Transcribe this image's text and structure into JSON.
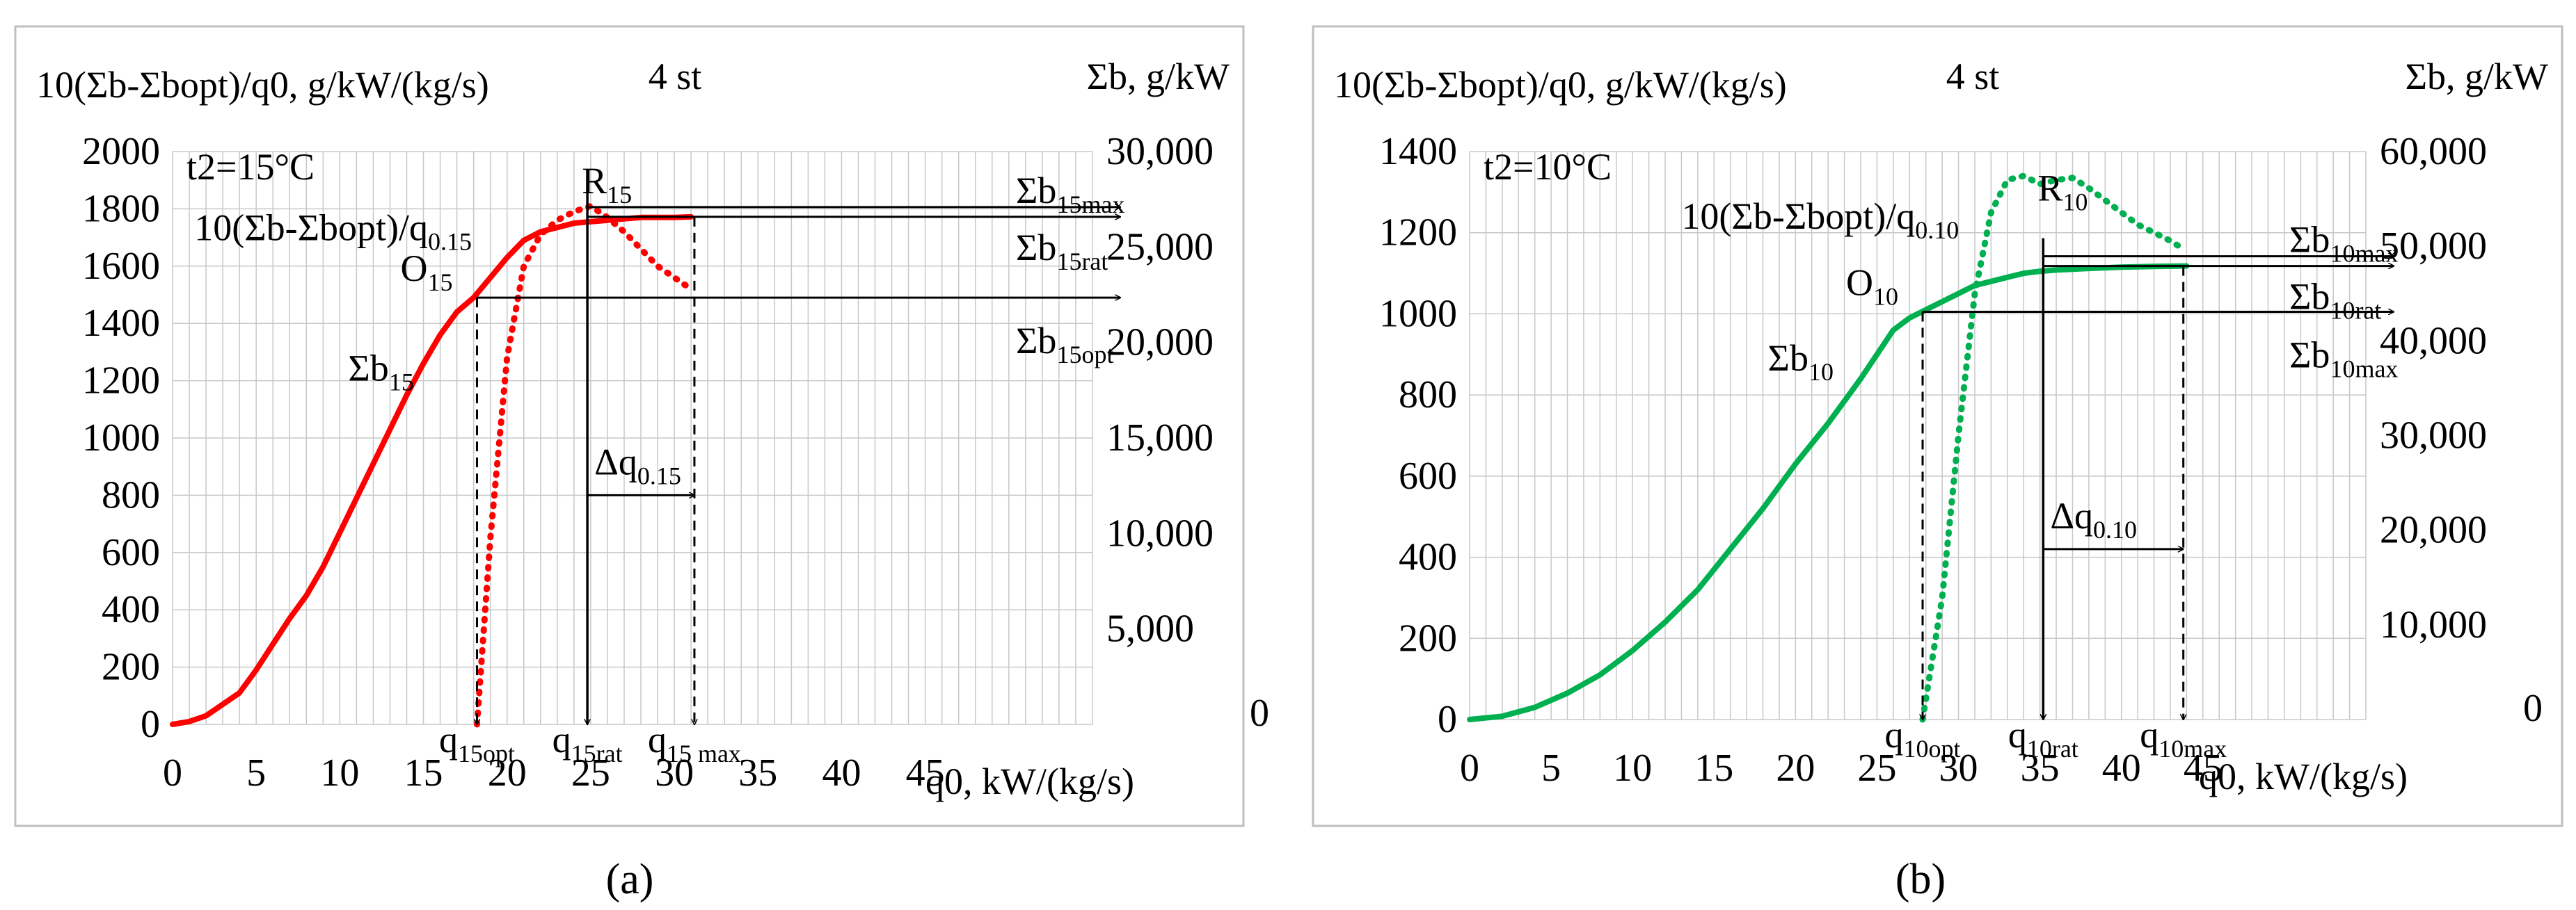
{
  "figure": {
    "caption_a": "(a)",
    "caption_b": "(b)"
  },
  "chart_data": [
    {
      "type": "line",
      "id": "a",
      "title": "4 st",
      "ylabel_left": "10(Σb-Σbopt)/q0, g/kW/(kg/s)",
      "ylabel_right": "Σb, g/kW",
      "xlabel": "q0, kW/(kg/s)",
      "xlim": [
        0,
        55
      ],
      "ylim_left": [
        0,
        2000
      ],
      "ylim_right": [
        0,
        30000
      ],
      "x_ticks": [
        0,
        5,
        10,
        15,
        20,
        25,
        30,
        35,
        40,
        45
      ],
      "y_ticks_left": [
        0,
        200,
        400,
        600,
        800,
        1000,
        1200,
        1400,
        1600,
        1800,
        2000
      ],
      "y_ticks_right": [
        "5,000",
        "10,000",
        "15,000",
        "20,000",
        "25,000",
        "30,000"
      ],
      "y_zero_right": "0",
      "grid": true,
      "condition": "t2=15°C",
      "series": [
        {
          "name": "Σb15",
          "axis": "left",
          "style": "solid",
          "color": "#ff0000",
          "x": [
            0,
            1,
            2,
            3,
            4,
            5,
            6,
            7,
            8,
            9,
            10,
            11,
            12,
            13,
            14,
            15,
            16,
            17,
            18,
            19,
            20,
            21,
            22,
            23,
            24,
            25,
            26,
            27,
            28,
            29,
            30,
            31
          ],
          "y": [
            0,
            10,
            30,
            70,
            110,
            190,
            280,
            370,
            450,
            550,
            670,
            790,
            910,
            1030,
            1150,
            1260,
            1360,
            1440,
            1490,
            1560,
            1630,
            1690,
            1720,
            1735,
            1750,
            1755,
            1760,
            1765,
            1770,
            1770,
            1770,
            1772
          ]
        },
        {
          "name": "10(Σb-Σbopt)/q0,15",
          "axis": "left",
          "style": "dotted",
          "color": "#ff0000",
          "x": [
            18.2,
            19,
            20,
            21,
            22,
            23,
            24,
            25,
            26,
            27,
            28,
            29,
            30,
            31
          ],
          "y": [
            0,
            650,
            1280,
            1600,
            1710,
            1760,
            1790,
            1810,
            1770,
            1720,
            1660,
            1600,
            1560,
            1520
          ]
        }
      ],
      "annotations": {
        "point_opt": "O15",
        "point_rat": "R15",
        "series_label": "Σb15",
        "curve_label": "10(Σb-Σbopt)/q0.15",
        "b_max": "Σb15max",
        "b_rat": "Σb15rat",
        "b_opt": "Σb15opt",
        "delta": "Δq0.15",
        "q_opt": "q15opt",
        "q_rat": "q15rat",
        "q_max": "q15 max",
        "q_opt_value": 18.2,
        "q_rat_value": 24.8,
        "q_max_value": 31.2,
        "b_opt_level": 1490,
        "b_top_level": 1772
      }
    },
    {
      "type": "line",
      "id": "b",
      "title": "4 st",
      "ylabel_left": "10(Σb-Σbopt)/q0, g/kW/(kg/s)",
      "ylabel_right": "Σb, g/kW",
      "xlabel": "q0, kW/(kg/s)",
      "xlim": [
        0,
        55
      ],
      "ylim_left": [
        0,
        1400
      ],
      "ylim_right": [
        0,
        60000
      ],
      "x_ticks": [
        0,
        5,
        10,
        15,
        20,
        25,
        30,
        35,
        40,
        45
      ],
      "y_ticks_left": [
        0,
        200,
        400,
        600,
        800,
        1000,
        1200,
        1400
      ],
      "y_ticks_right": [
        "10,000",
        "20,000",
        "30,000",
        "40,000",
        "50,000",
        "60,000"
      ],
      "y_zero_right": "0",
      "grid": true,
      "condition": "t2=10°C",
      "series": [
        {
          "name": "Σb10",
          "axis": "left",
          "style": "solid",
          "color": "#00b050",
          "x": [
            0,
            2,
            4,
            6,
            8,
            10,
            12,
            14,
            16,
            18,
            20,
            22,
            24,
            26,
            27,
            28,
            29,
            30,
            31,
            32,
            33,
            34,
            35,
            36,
            38,
            40,
            42,
            44
          ],
          "y": [
            0,
            8,
            30,
            65,
            110,
            170,
            240,
            320,
            420,
            520,
            630,
            730,
            840,
            960,
            990,
            1010,
            1030,
            1050,
            1070,
            1080,
            1090,
            1100,
            1105,
            1108,
            1112,
            1115,
            1117,
            1118
          ]
        },
        {
          "name": "10(Σb-Σbopt)/q0,10",
          "axis": "left",
          "style": "dotted",
          "color": "#00b050",
          "x": [
            27.8,
            29,
            30,
            31,
            32,
            33,
            34,
            35,
            36,
            37,
            38,
            39,
            40,
            41,
            42,
            43,
            43.8
          ],
          "y": [
            0,
            300,
            700,
            1050,
            1250,
            1330,
            1340,
            1320,
            1330,
            1335,
            1310,
            1280,
            1250,
            1220,
            1200,
            1180,
            1160
          ]
        }
      ],
      "annotations": {
        "point_opt": "O10",
        "point_rat": "R10",
        "series_label": "Σb10",
        "curve_label": "10(Σb-Σbopt)/q0.10",
        "b_max": "Σb10max",
        "b_rat": "Σb10rat",
        "b_opt": "Σb10max",
        "delta": "Δq0.10",
        "q_opt": "q10opt",
        "q_rat": "q10rat",
        "q_max": "q10max",
        "q_opt_value": 27.8,
        "q_rat_value": 35.2,
        "q_max_value": 43.8,
        "b_opt_level": 1005,
        "b_top_level": 1118
      }
    }
  ]
}
